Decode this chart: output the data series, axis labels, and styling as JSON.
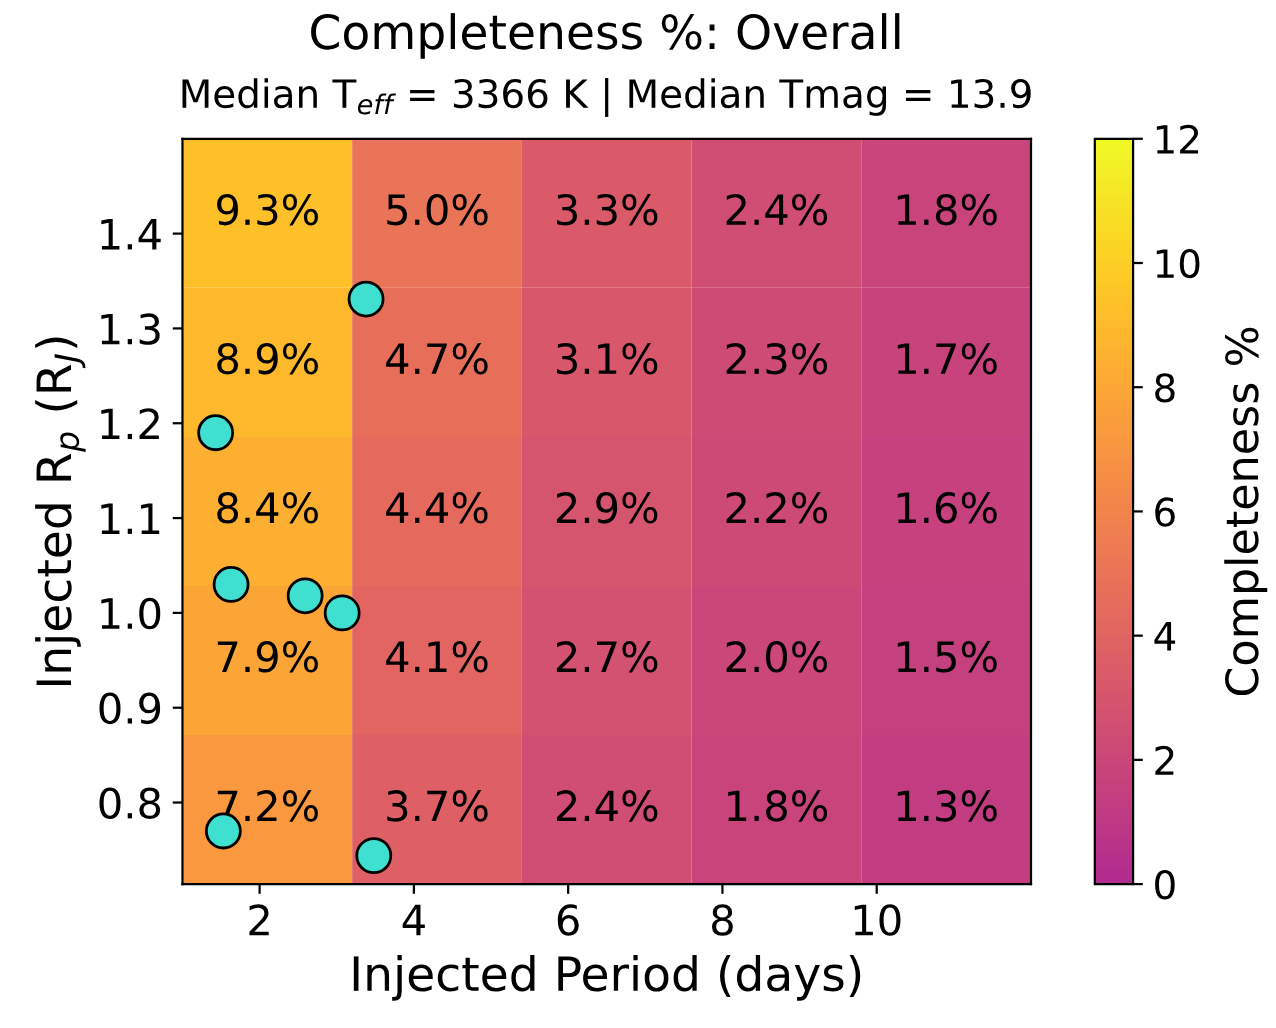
{
  "chart_data": {
    "type": "heatmap",
    "title": "Completeness %: Overall",
    "subtitle": "Median T$_{eff}$ = 3366 K | Median Tmag = 13.9",
    "xlabel": "Injected Period (days)",
    "ylabel": "Injected R$_{p}$ (R$_{J}$)",
    "clabel": "Completeness %",
    "cells": [
      [
        9.3,
        5.0,
        3.3,
        2.4,
        1.8
      ],
      [
        8.9,
        4.7,
        3.1,
        2.3,
        1.7
      ],
      [
        8.4,
        4.4,
        2.9,
        2.2,
        1.6
      ],
      [
        7.9,
        4.1,
        2.7,
        2.0,
        1.5
      ],
      [
        7.2,
        3.7,
        2.4,
        1.8,
        1.3
      ]
    ],
    "cell_labels": [
      [
        "9.3%",
        "5.0%",
        "3.3%",
        "2.4%",
        "1.8%"
      ],
      [
        "8.9%",
        "4.7%",
        "3.1%",
        "2.3%",
        "1.7%"
      ],
      [
        "8.4%",
        "4.4%",
        "2.9%",
        "2.2%",
        "1.6%"
      ],
      [
        "7.9%",
        "4.1%",
        "2.7%",
        "2.0%",
        "1.5%"
      ],
      [
        "7.2%",
        "3.7%",
        "2.4%",
        "1.8%",
        "1.3%"
      ]
    ],
    "clim": [
      0,
      12
    ],
    "cticks": [
      0,
      2,
      4,
      6,
      8,
      10,
      12
    ],
    "xlim": [
      1.0,
      12.0
    ],
    "xticks": [
      2,
      4,
      6,
      8,
      10
    ],
    "ylim": [
      0.714,
      1.5
    ],
    "yticks": [
      0.8,
      0.9,
      {
        "value": 1.0,
        "label": "1.0"
      },
      1.1,
      1.2,
      1.3,
      1.4
    ],
    "grid": false,
    "marker": "circle",
    "series": [
      {
        "type": "scatter",
        "color": "#40e0d0",
        "x": [
          1.43,
          1.63,
          1.53,
          2.59,
          3.07,
          3.38,
          3.48
        ],
        "values": [
          1.19,
          1.03,
          0.77,
          1.018,
          1.0,
          1.331,
          0.744
        ]
      }
    ]
  }
}
